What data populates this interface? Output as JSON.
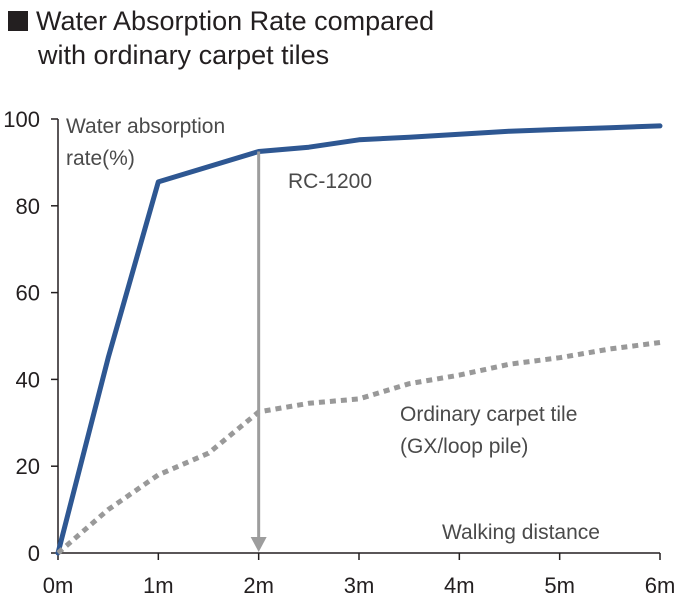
{
  "chart_data": {
    "type": "line",
    "title_line1": "Water Absorption Rate compared",
    "title_line2": "with ordinary carpet tiles",
    "ylabel_line1": "Water absorption",
    "ylabel_line2": "rate(%)",
    "xlabel": "Walking distance",
    "x_ticks": [
      "0m",
      "1m",
      "2m",
      "3m",
      "4m",
      "5m",
      "6m"
    ],
    "y_ticks": [
      "0",
      "20",
      "40",
      "60",
      "80",
      "100"
    ],
    "xlim": [
      0,
      6
    ],
    "ylim": [
      0,
      100
    ],
    "grid": false,
    "series": [
      {
        "name": "RC-1200",
        "color": "#2e5792",
        "style": "solid",
        "x": [
          0,
          0.5,
          1,
          2,
          2.5,
          3,
          3.5,
          4,
          4.5,
          5,
          5.5,
          6
        ],
        "values": [
          0,
          45,
          85.5,
          92.5,
          93.5,
          95.2,
          95.8,
          96.5,
          97.2,
          97.6,
          98,
          98.4
        ]
      },
      {
        "name_line1": "Ordinary carpet tile",
        "name_line2": "(GX/loop pile)",
        "color": "#999999",
        "style": "dotted",
        "x": [
          0,
          0.5,
          1,
          1.5,
          2,
          2.5,
          3,
          3.5,
          4,
          4.5,
          5,
          5.5,
          6
        ],
        "values": [
          0,
          10,
          18,
          23,
          32.5,
          34.5,
          35.5,
          39,
          41,
          43.5,
          45,
          47,
          48.5
        ]
      }
    ],
    "annotations": [
      {
        "type": "arrow",
        "x": 2,
        "from": 92.5,
        "to": 0,
        "color": "#9d9d9d"
      }
    ]
  }
}
